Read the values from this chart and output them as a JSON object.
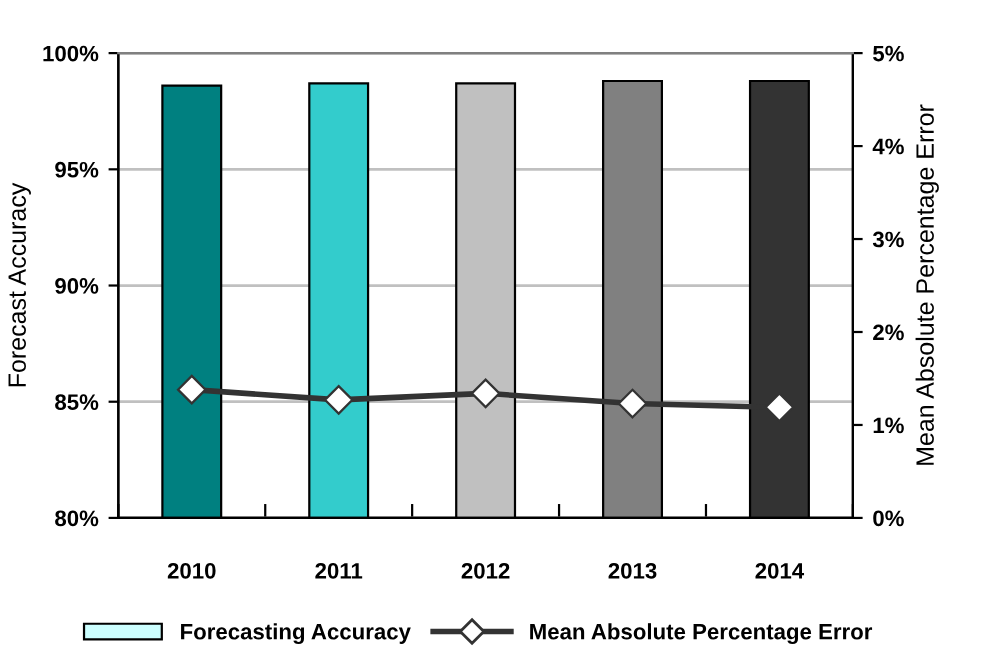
{
  "chart_data": {
    "type": "bar",
    "ylabel": "Forecast Accuracy",
    "y2label": "Mean Absolute Percentage Error",
    "categories": [
      "2010",
      "2011",
      "2012",
      "2013",
      "2014"
    ],
    "series": [
      {
        "name": "Forecasting Accuracy",
        "color": "#ccffff",
        "colors": [
          "#008080",
          "#33cccc",
          "#c0c0c0",
          "#808080",
          "#333333"
        ],
        "values": [
          98.6,
          98.7,
          98.7,
          98.8,
          98.8
        ]
      },
      {
        "name": "Mean Absolute Percentage Error",
        "type": "line",
        "axis": "y2",
        "color": "#333333",
        "marker": "diamond",
        "values": [
          1.38,
          1.27,
          1.34,
          1.23,
          1.19
        ]
      }
    ],
    "ylim": [
      80,
      100
    ],
    "yticks": [
      {
        "value": 80,
        "label": "80%"
      },
      {
        "value": 85,
        "label": "85%"
      },
      {
        "value": 90,
        "label": "90%"
      },
      {
        "value": 95,
        "label": "95%"
      },
      {
        "value": 100,
        "label": "100%"
      }
    ],
    "y2lim": [
      0,
      5
    ],
    "y2ticks": [
      {
        "value": 0,
        "label": "0%"
      },
      {
        "value": 1,
        "label": "1%"
      },
      {
        "value": 2,
        "label": "2%"
      },
      {
        "value": 3,
        "label": "3%"
      },
      {
        "value": 4,
        "label": "4%"
      },
      {
        "value": 5,
        "label": "5%"
      }
    ],
    "grid": "y",
    "legend": "bottom"
  }
}
